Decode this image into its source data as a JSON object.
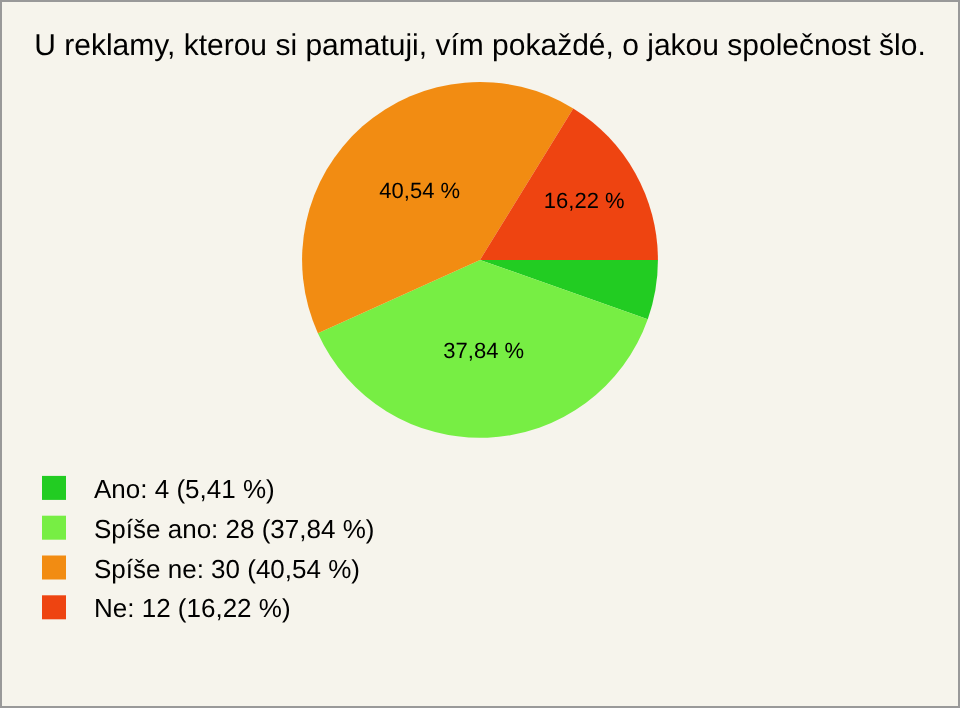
{
  "chart_data": {
    "type": "pie",
    "title": "U reklamy, kterou si pamatuji, vím pokaždé, o jakou společnost šlo.",
    "categories": [
      "Ano: 4 (5,41 %)",
      "Spíše ano: 28 (37,84 %)",
      "Spíše ne: 30 (40,54 %)",
      "Ne: 12 (16,22 %)"
    ],
    "values": [
      5.41,
      37.84,
      40.54,
      16.22
    ],
    "value_labels": [
      null,
      "37,84 %",
      "40,54 %",
      "16,22 %"
    ],
    "colors": [
      "#22cc22",
      "#77ee44",
      "#f28c12",
      "#ee4411"
    ],
    "legend": "bottom left"
  }
}
